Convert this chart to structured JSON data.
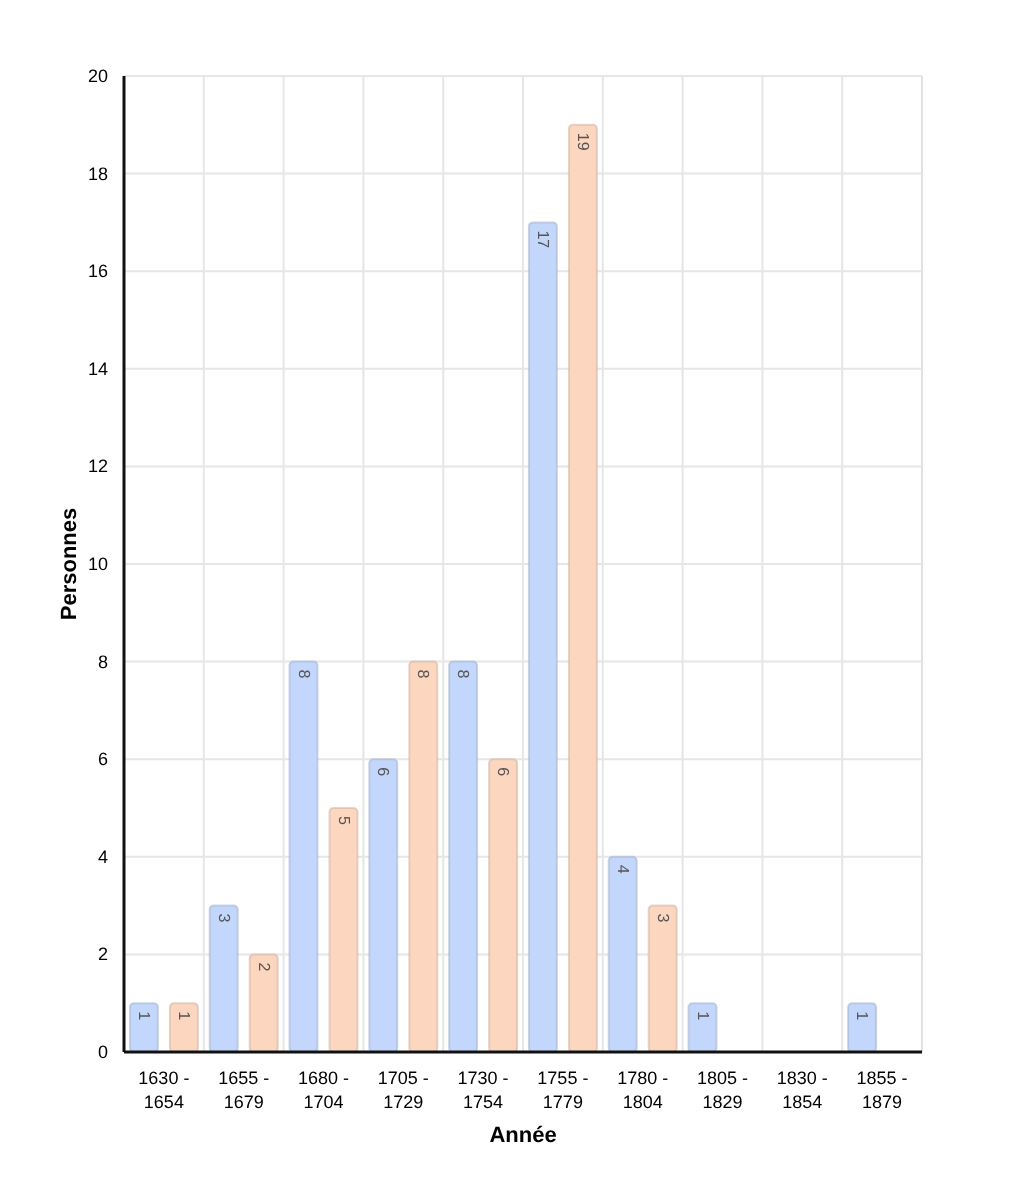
{
  "chart_data": {
    "type": "bar",
    "xlabel": "Année",
    "ylabel": "Personnes",
    "categories": [
      "1630 - 1654",
      "1655 - 1679",
      "1680 - 1704",
      "1705 - 1729",
      "1730 - 1754",
      "1755 - 1779",
      "1780 - 1804",
      "1805 - 1829",
      "1830 - 1854",
      "1855 - 1879"
    ],
    "series": [
      {
        "color": "#c2d7fb",
        "values": [
          1,
          3,
          8,
          6,
          8,
          17,
          4,
          1,
          null,
          1
        ]
      },
      {
        "color": "#fdd6c0",
        "values": [
          1,
          2,
          5,
          8,
          6,
          19,
          3,
          null,
          null,
          null
        ]
      }
    ],
    "ylim": [
      0,
      20
    ],
    "yticks": [
      0,
      2,
      4,
      6,
      8,
      10,
      12,
      14,
      16,
      18,
      20
    ],
    "grid": true,
    "data_labels": true
  }
}
